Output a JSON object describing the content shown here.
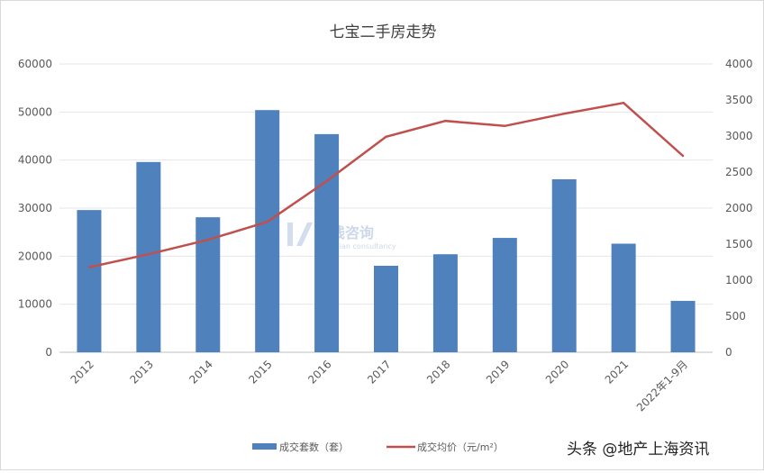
{
  "chart_data": {
    "type": "bar+line",
    "title": "七宝二手房走势",
    "categories": [
      "2012",
      "2013",
      "2014",
      "2015",
      "2016",
      "2017",
      "2018",
      "2019",
      "2020",
      "2021",
      "2022年1-9月"
    ],
    "series": [
      {
        "name": "成交套数（套）",
        "type": "bar",
        "axis": "left",
        "color": "#4f81bd",
        "values": [
          29600,
          39600,
          28100,
          50400,
          45400,
          18000,
          20400,
          23800,
          36000,
          22600,
          10700
        ]
      },
      {
        "name": "成交均价（元/m²）",
        "type": "line",
        "axis": "right",
        "color": "#c0504d",
        "values": [
          1180,
          1360,
          1560,
          1810,
          2375,
          2990,
          3210,
          3140,
          3310,
          3460,
          2725
        ]
      }
    ],
    "left_axis": {
      "ylim": [
        0,
        60000
      ],
      "ticks": [
        "0",
        "10000",
        "20000",
        "30000",
        "40000",
        "50000",
        "60000"
      ]
    },
    "right_axis": {
      "ylim": [
        0,
        4000
      ],
      "ticks": [
        "0",
        "500",
        "1000",
        "1500",
        "2000",
        "2500",
        "3000",
        "3500",
        "4000"
      ]
    },
    "grid": true,
    "legend_position": "bottom"
  },
  "watermark": {
    "text": "环线咨询",
    "subtext": "Huanxian consultancy"
  },
  "source_tag": "头条 @地产上海资讯"
}
